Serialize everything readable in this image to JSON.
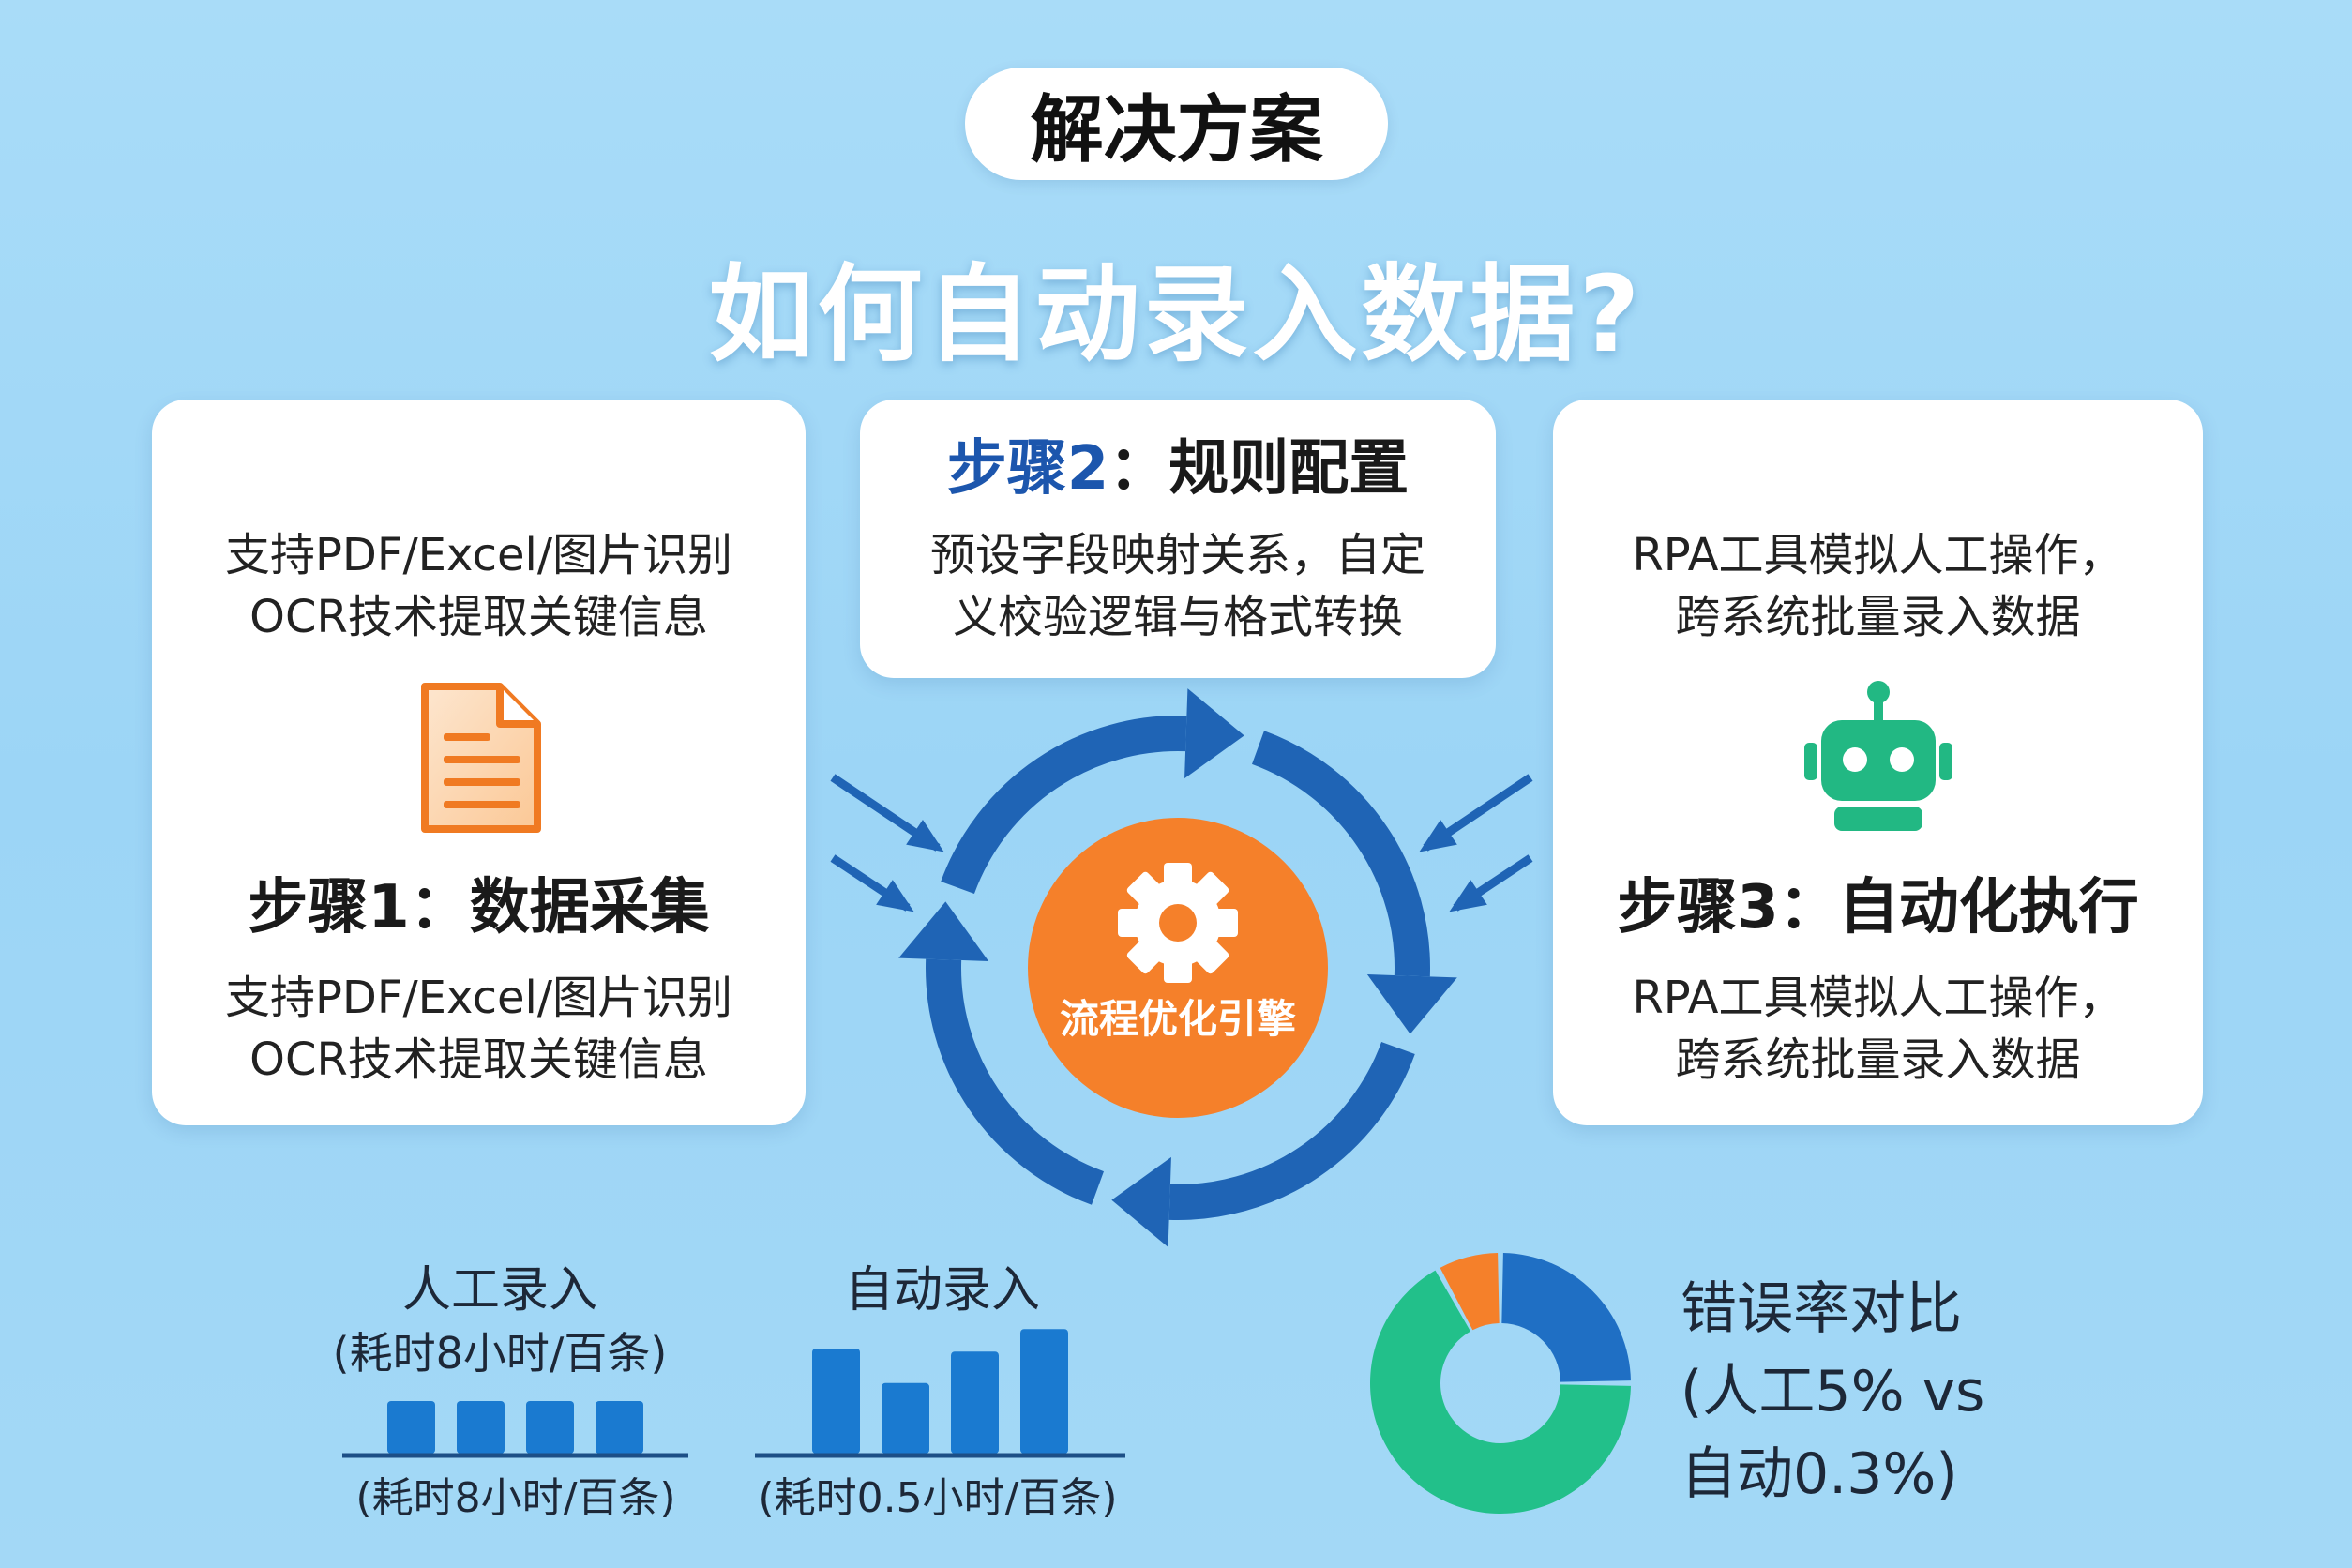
{
  "badge": "解决方案",
  "title": "如何自动录入数据?",
  "step1": {
    "top_lines": [
      "支持PDF/Excel/图片识别",
      "OCR技术提取关键信息"
    ],
    "heading": "步骤1：数据采集",
    "bottom_lines": [
      "支持PDF/Excel/图片识别",
      "OCR技术提取关键信息"
    ],
    "icon": "document-icon"
  },
  "step2": {
    "heading_prefix": "步骤2",
    "heading_rest": "：规则配置",
    "lines": [
      "预设字段映射关系，自定",
      "义校验逻辑与格式转换"
    ]
  },
  "step3": {
    "top_lines": [
      "RPA工具模拟人工操作，",
      "跨系统批量录入数据"
    ],
    "heading": "步骤3：自动化执行",
    "bottom_lines": [
      "RPA工具模拟人工操作，",
      "跨系统批量录入数据"
    ],
    "icon": "robot-icon"
  },
  "engine": {
    "label": "流程优化引擎",
    "icon": "gear-icon"
  },
  "colors": {
    "accent_blue": "#1f64b5",
    "bar_blue": "#1a7ad0",
    "orange": "#f5802a",
    "green": "#22c08a",
    "text_dark": "#1d2838"
  },
  "chart_data": [
    {
      "type": "bar",
      "title": "人工录入",
      "subtitle": "(耗时8小时/百条)",
      "xlabel": "(耗时8小时/百条)",
      "values": [
        35,
        35,
        35,
        35
      ]
    },
    {
      "type": "bar",
      "title": "自动录入",
      "xlabel": "(耗时0.5小时/百条)",
      "values": [
        70,
        47,
        68,
        83
      ]
    },
    {
      "type": "pie",
      "donut": true,
      "title_lines": [
        "错误率对比",
        "(人工5% vs",
        "自动0.3%)"
      ],
      "values": [
        25,
        67,
        8
      ],
      "colors": [
        "#1f6fc4",
        "#22c08a",
        "#f5802a"
      ]
    }
  ]
}
